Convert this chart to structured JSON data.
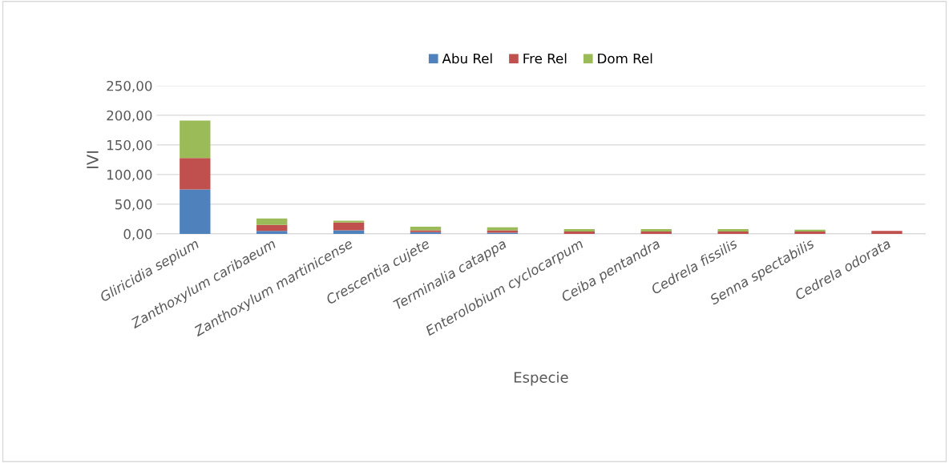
{
  "chart_data": {
    "type": "bar",
    "stacked": true,
    "xlabel": "Especie",
    "ylabel": "IVI",
    "categories": [
      "Gliricidia sepium",
      "Zanthoxylum caribaeum",
      "Zanthoxylum martinicense",
      "Crescentia cujete",
      "Terminalia catappa",
      "Enterolobium cyclocarpum",
      "Ceiba pentandra",
      "Cedrela fissilis",
      "Senna spectabilis",
      "Cedrela odorata"
    ],
    "series": [
      {
        "name": "Abu Rel",
        "color": "#4f81bd",
        "values": [
          75,
          5,
          6,
          3,
          2,
          null,
          null,
          null,
          null,
          null
        ]
      },
      {
        "name": "Fre Rel",
        "color": "#c0504d",
        "values": [
          53,
          10,
          13,
          3,
          4,
          4,
          4,
          4,
          4,
          5
        ]
      },
      {
        "name": "Dom Rel",
        "color": "#9bbb59",
        "values": [
          63,
          11,
          3,
          6,
          5,
          4,
          4,
          4,
          3,
          null
        ]
      }
    ],
    "ylim": [
      0,
      250
    ],
    "yticks": [
      {
        "value": 0,
        "label": "0,00"
      },
      {
        "value": 50,
        "label": "50,00"
      },
      {
        "value": 100,
        "label": "100,00"
      },
      {
        "value": 150,
        "label": "150,00"
      },
      {
        "value": 200,
        "label": "200,00"
      },
      {
        "value": 250,
        "label": "250,00"
      }
    ],
    "grid": "y",
    "legend": "top"
  }
}
